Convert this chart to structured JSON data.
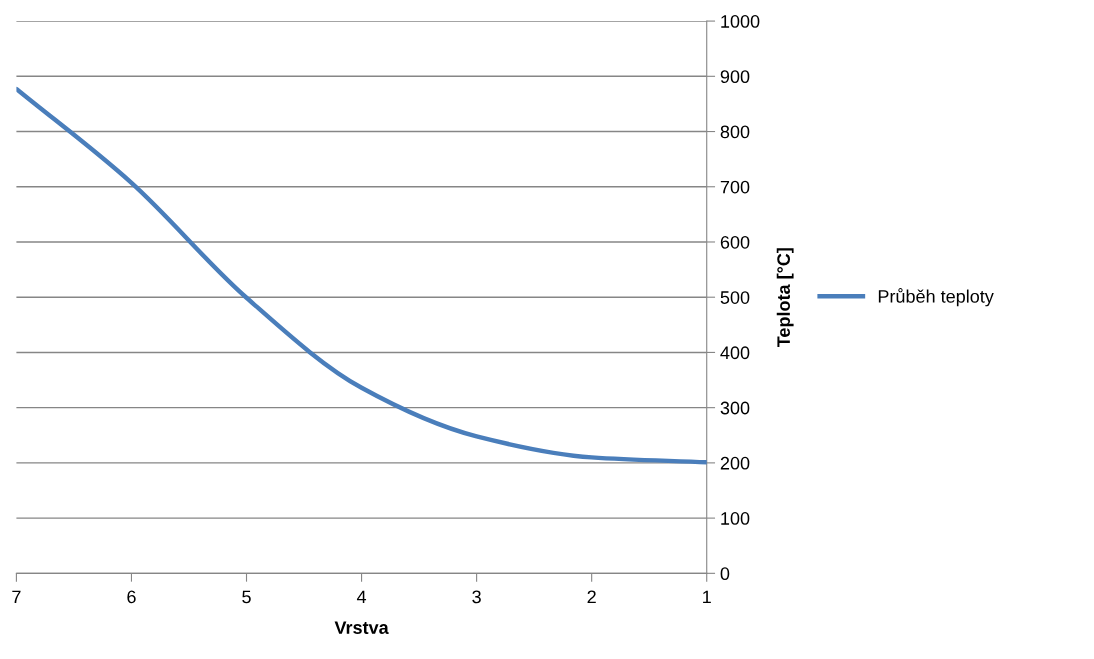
{
  "chart_data": {
    "type": "line",
    "xlabel": "Vrstva",
    "ylabel": "Teplota [°C]",
    "categories": [
      "7",
      "6",
      "5",
      "4",
      "3",
      "2",
      "1"
    ],
    "series": [
      {
        "name": "Průběh teploty",
        "color": "#4a7ebb",
        "values": [
          877,
          707,
          499,
          336,
          248,
          210,
          201
        ]
      }
    ],
    "ylim": [
      0,
      1000
    ],
    "yticks": [
      0,
      100,
      200,
      300,
      400,
      500,
      600,
      700,
      800,
      900,
      1000
    ],
    "grid": "y",
    "legend": "right"
  }
}
